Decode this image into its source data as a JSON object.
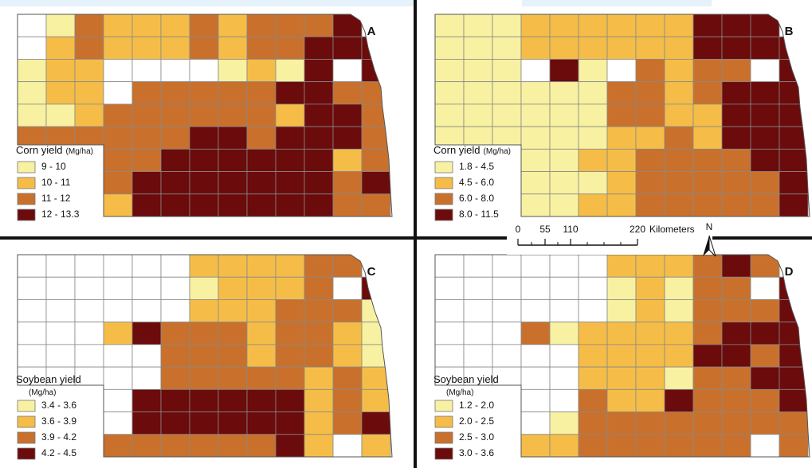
{
  "class_colors": [
    "#f7f1a1",
    "#f5bd48",
    "#c9712c",
    "#6b0b0b"
  ],
  "panels": [
    {
      "letter": "A",
      "legend": {
        "title": "Corn yield",
        "unit": "(Mg/ha)",
        "classes": [
          "9 - 10",
          "10 - 11",
          "11 - 12",
          "12 - 13.3"
        ]
      },
      "counties": [
        [
          -1,
          0,
          2,
          1,
          1,
          1,
          2,
          1,
          2,
          2,
          2,
          3,
          -1
        ],
        [
          -1,
          1,
          2,
          1,
          1,
          1,
          2,
          1,
          2,
          2,
          3,
          3,
          3
        ],
        [
          0,
          1,
          1,
          -1,
          -1,
          -1,
          -1,
          0,
          1,
          0,
          3,
          -1,
          3
        ],
        [
          0,
          1,
          1,
          -1,
          2,
          2,
          2,
          2,
          2,
          3,
          3,
          2,
          2
        ],
        [
          0,
          0,
          1,
          2,
          2,
          2,
          2,
          2,
          2,
          1,
          3,
          3,
          2
        ],
        [
          2,
          2,
          2,
          2,
          2,
          2,
          3,
          3,
          2,
          3,
          3,
          3,
          2
        ],
        [
          2,
          2,
          2,
          2,
          2,
          3,
          3,
          3,
          3,
          3,
          3,
          1,
          2
        ],
        [
          2,
          2,
          2,
          2,
          3,
          3,
          3,
          3,
          3,
          3,
          3,
          2,
          3
        ],
        [
          2,
          2,
          2,
          1,
          3,
          3,
          3,
          3,
          3,
          3,
          3,
          2,
          2
        ]
      ]
    },
    {
      "letter": "B",
      "legend": {
        "title": "Corn yield",
        "unit": "(Mg/ha)",
        "classes": [
          "1.8 - 4.5",
          "4.5 - 6.0",
          "6.0 - 8.0",
          "8.0 - 11.5"
        ]
      },
      "counties": [
        [
          0,
          0,
          0,
          1,
          1,
          1,
          1,
          1,
          1,
          3,
          3,
          3,
          -1
        ],
        [
          0,
          0,
          0,
          1,
          1,
          1,
          1,
          1,
          1,
          3,
          3,
          3,
          3
        ],
        [
          0,
          0,
          0,
          -1,
          3,
          0,
          -1,
          2,
          1,
          2,
          2,
          -1,
          3
        ],
        [
          0,
          0,
          0,
          0,
          0,
          0,
          2,
          2,
          1,
          2,
          3,
          3,
          3
        ],
        [
          0,
          0,
          0,
          0,
          0,
          0,
          2,
          2,
          1,
          1,
          3,
          3,
          3
        ],
        [
          0,
          0,
          0,
          0,
          0,
          0,
          1,
          1,
          2,
          1,
          3,
          3,
          3
        ],
        [
          0,
          0,
          0,
          0,
          0,
          1,
          1,
          2,
          2,
          2,
          2,
          3,
          3
        ],
        [
          0,
          0,
          0,
          0,
          0,
          0,
          1,
          2,
          2,
          2,
          2,
          2,
          3
        ],
        [
          0,
          0,
          0,
          0,
          0,
          1,
          1,
          2,
          2,
          2,
          2,
          2,
          3
        ]
      ]
    },
    {
      "letter": "C",
      "legend": {
        "title": "Soybean yield",
        "unit": "(Mg/ha)",
        "classes": [
          "3.4 - 3.6",
          "3.6 - 3.9",
          "3.9 - 4.2",
          "4.2 - 4.5"
        ]
      },
      "counties": [
        [
          -1,
          -1,
          -1,
          -1,
          -1,
          -1,
          1,
          1,
          1,
          1,
          2,
          2,
          -1
        ],
        [
          -1,
          -1,
          -1,
          -1,
          -1,
          -1,
          0,
          1,
          1,
          1,
          2,
          -1,
          3
        ],
        [
          -1,
          -1,
          -1,
          -1,
          -1,
          -1,
          1,
          1,
          1,
          2,
          2,
          2,
          0
        ],
        [
          -1,
          -1,
          -1,
          1,
          3,
          2,
          2,
          2,
          1,
          2,
          2,
          1,
          0
        ],
        [
          -1,
          -1,
          -1,
          -1,
          -1,
          2,
          2,
          2,
          1,
          2,
          2,
          1,
          0
        ],
        [
          -1,
          -1,
          -1,
          -1,
          -1,
          2,
          2,
          2,
          2,
          2,
          1,
          2,
          1
        ],
        [
          -1,
          -1,
          -1,
          -1,
          3,
          3,
          3,
          3,
          3,
          3,
          1,
          2,
          1
        ],
        [
          -1,
          -1,
          -1,
          -1,
          3,
          3,
          3,
          3,
          3,
          3,
          1,
          2,
          3
        ],
        [
          -1,
          -1,
          -1,
          2,
          2,
          2,
          2,
          2,
          2,
          3,
          1,
          -1,
          1
        ]
      ]
    },
    {
      "letter": "D",
      "legend": {
        "title": "Soybean yield",
        "unit": "(Mg/ha)",
        "classes": [
          "1.2 - 2.0",
          "2.0 - 2.5",
          "2.5 - 3.0",
          "3.0 - 3.6"
        ]
      },
      "counties": [
        [
          -1,
          -1,
          -1,
          -1,
          -1,
          -1,
          1,
          1,
          1,
          2,
          3,
          2,
          -1
        ],
        [
          -1,
          -1,
          -1,
          -1,
          -1,
          -1,
          0,
          1,
          0,
          2,
          2,
          -1,
          3
        ],
        [
          -1,
          -1,
          -1,
          -1,
          -1,
          -1,
          0,
          1,
          0,
          2,
          2,
          2,
          3
        ],
        [
          -1,
          -1,
          -1,
          2,
          0,
          1,
          1,
          1,
          1,
          2,
          3,
          3,
          3
        ],
        [
          -1,
          -1,
          -1,
          -1,
          -1,
          1,
          1,
          1,
          1,
          3,
          3,
          2,
          3
        ],
        [
          -1,
          -1,
          -1,
          -1,
          -1,
          1,
          1,
          1,
          0,
          2,
          2,
          3,
          3
        ],
        [
          -1,
          -1,
          -1,
          -1,
          -1,
          2,
          1,
          1,
          3,
          2,
          2,
          2,
          3
        ],
        [
          -1,
          -1,
          -1,
          -1,
          0,
          2,
          2,
          2,
          2,
          2,
          2,
          2,
          2
        ],
        [
          -1,
          -1,
          -1,
          1,
          1,
          2,
          2,
          2,
          2,
          2,
          2,
          -1,
          2
        ]
      ]
    }
  ],
  "scale_bar": {
    "labels": [
      "0",
      "55",
      "110",
      "220"
    ],
    "unit": "Kilometers"
  },
  "north": "N"
}
